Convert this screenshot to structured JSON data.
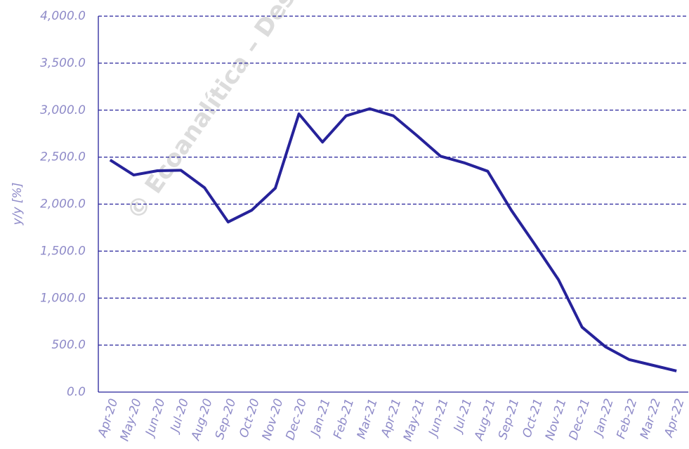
{
  "chart_data": {
    "type": "line",
    "watermark": "© Ecoanalítica – Descarga",
    "y_label": "y/y [%]",
    "categories": [
      "Apr-20",
      "May-20",
      "Jun-20",
      "Jul-20",
      "Aug-20",
      "Sep-20",
      "Oct-20",
      "Nov-20",
      "Dec-20",
      "Jan-21",
      "Feb-21",
      "Mar-21",
      "Apr-21",
      "May-21",
      "Jun-21",
      "Jul-21",
      "Aug-21",
      "Sep-21",
      "Oct-21",
      "Nov-21",
      "Dec-21",
      "Jan-22",
      "Feb-22",
      "Mar-22",
      "Apr-22"
    ],
    "series": [
      {
        "name": "y/y",
        "color": "#26229a",
        "values": [
          2470,
          2310,
          2355,
          2360,
          2175,
          1810,
          1935,
          2170,
          2960,
          2660,
          2940,
          3015,
          2940,
          2730,
          2510,
          2440,
          2350,
          1935,
          1570,
          1195,
          690,
          480,
          345,
          285,
          225
        ]
      }
    ],
    "ylim": [
      0,
      4000
    ],
    "yticks": [
      {
        "value": 0,
        "label": "0.0"
      },
      {
        "value": 500,
        "label": "500.0"
      },
      {
        "value": 1000,
        "label": "1,000.0"
      },
      {
        "value": 1500,
        "label": "1,500.0"
      },
      {
        "value": 2000,
        "label": "2,000.0"
      },
      {
        "value": 2500,
        "label": "2,500.0"
      },
      {
        "value": 3000,
        "label": "3,000.0"
      },
      {
        "value": 3500,
        "label": "3,500.0"
      },
      {
        "value": 4000,
        "label": "4,000.0"
      }
    ],
    "grid": true
  }
}
